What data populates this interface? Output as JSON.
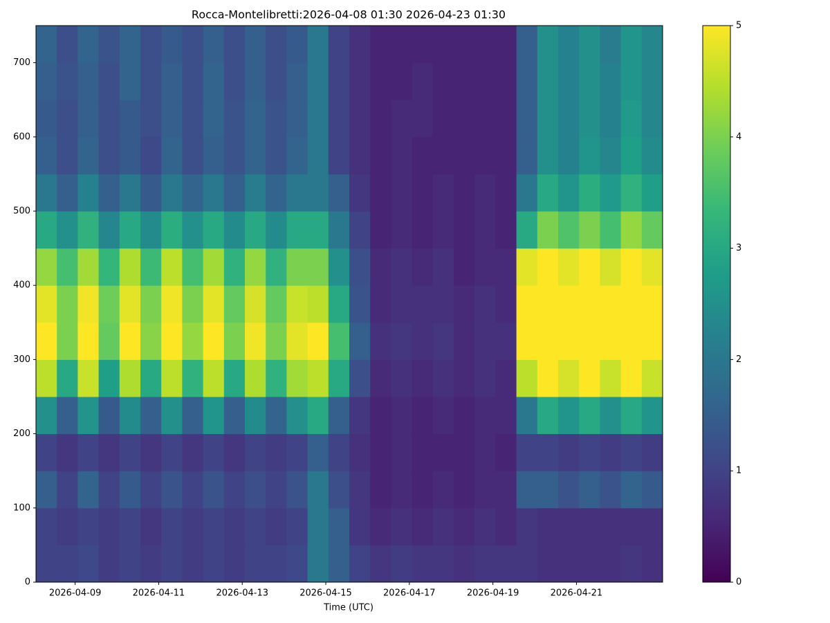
{
  "chart_data": {
    "type": "heatmap",
    "title": "Rocca-Montelibretti:2026-04-08 01:30 2026-04-23 01:30",
    "x_label": "Time (UTC)",
    "colormap": "viridis",
    "x": [
      "2026-04-08 01:30",
      "2026-04-08 13:30",
      "2026-04-09 01:30",
      "2026-04-09 13:30",
      "2026-04-10 01:30",
      "2026-04-10 13:30",
      "2026-04-11 01:30",
      "2026-04-11 13:30",
      "2026-04-12 01:30",
      "2026-04-12 13:30",
      "2026-04-13 01:30",
      "2026-04-13 13:30",
      "2026-04-14 01:30",
      "2026-04-14 13:30",
      "2026-04-15 01:30",
      "2026-04-15 13:30",
      "2026-04-16 01:30",
      "2026-04-16 13:30",
      "2026-04-17 01:30",
      "2026-04-17 13:30",
      "2026-04-18 01:30",
      "2026-04-18 13:30",
      "2026-04-19 01:30",
      "2026-04-19 13:30",
      "2026-04-20 01:30",
      "2026-04-20 13:30",
      "2026-04-21 01:30",
      "2026-04-21 13:30",
      "2026-04-22 01:30",
      "2026-04-22 13:30"
    ],
    "xlim": [
      "2026-04-08 01:30",
      "2026-04-23 01:30"
    ],
    "xticks": [
      "2026-04-09",
      "2026-04-11",
      "2026-04-13",
      "2026-04-15",
      "2026-04-17",
      "2026-04-19",
      "2026-04-21"
    ],
    "y": [
      0,
      50,
      100,
      150,
      200,
      250,
      300,
      350,
      400,
      450,
      500,
      550,
      600,
      650,
      700
    ],
    "ylim": [
      0,
      750
    ],
    "yticks": [
      0,
      100,
      200,
      300,
      400,
      500,
      600,
      700
    ],
    "clim": [
      0,
      5
    ],
    "cticks": [
      0,
      1,
      2,
      3,
      4,
      5
    ],
    "values": [
      [
        1.0,
        1.0,
        1.5,
        1.0,
        2.5,
        4.5,
        5.0,
        4.8,
        4.2,
        3.0,
        2.0,
        1.5,
        1.4,
        1.5,
        1.6
      ],
      [
        1.0,
        0.9,
        1.0,
        0.8,
        1.5,
        3.0,
        4.0,
        4.0,
        3.5,
        2.5,
        1.5,
        1.2,
        1.2,
        1.3,
        1.2
      ],
      [
        1.1,
        1.0,
        1.6,
        1.0,
        2.6,
        4.6,
        5.0,
        4.9,
        4.3,
        3.2,
        2.2,
        1.6,
        1.5,
        1.5,
        1.6
      ],
      [
        0.9,
        0.9,
        1.0,
        0.8,
        1.4,
        2.8,
        3.8,
        3.9,
        3.3,
        2.3,
        1.5,
        1.2,
        1.2,
        1.2,
        1.3
      ],
      [
        1.0,
        1.0,
        1.4,
        1.0,
        2.4,
        4.4,
        5.0,
        4.8,
        4.4,
        3.0,
        2.0,
        1.4,
        1.4,
        1.6,
        1.6
      ],
      [
        0.9,
        0.8,
        1.0,
        0.8,
        1.5,
        3.0,
        4.1,
        4.0,
        3.4,
        2.4,
        1.4,
        1.1,
        1.2,
        1.2,
        1.2
      ],
      [
        1.0,
        1.0,
        1.3,
        1.0,
        2.5,
        4.5,
        5.0,
        4.9,
        4.5,
        3.1,
        2.0,
        1.6,
        1.5,
        1.5,
        1.4
      ],
      [
        0.9,
        0.9,
        1.0,
        0.8,
        1.5,
        3.2,
        4.2,
        4.0,
        3.5,
        2.5,
        1.6,
        1.2,
        1.2,
        1.2,
        1.2
      ],
      [
        1.0,
        1.0,
        1.3,
        1.0,
        2.6,
        4.5,
        5.0,
        4.8,
        4.3,
        3.0,
        2.0,
        1.5,
        1.6,
        1.6,
        1.5
      ],
      [
        0.9,
        0.9,
        1.0,
        0.8,
        1.5,
        3.0,
        4.0,
        3.8,
        3.2,
        2.4,
        1.5,
        1.3,
        1.3,
        1.2,
        1.2
      ],
      [
        1.0,
        1.0,
        1.2,
        1.0,
        2.4,
        4.4,
        4.9,
        4.7,
        4.2,
        3.0,
        2.1,
        1.6,
        1.6,
        1.5,
        1.5
      ],
      [
        1.0,
        0.9,
        1.0,
        0.9,
        1.6,
        3.2,
        4.0,
        3.8,
        3.2,
        2.4,
        1.6,
        1.3,
        1.3,
        1.2,
        1.2
      ],
      [
        1.1,
        1.0,
        1.3,
        1.0,
        2.5,
        4.3,
        4.8,
        4.6,
        4.0,
        3.0,
        2.0,
        1.6,
        1.5,
        1.5,
        1.4
      ],
      [
        2.0,
        2.0,
        2.0,
        1.5,
        3.0,
        4.5,
        5.0,
        4.5,
        4.0,
        3.0,
        2.0,
        2.0,
        2.0,
        2.0,
        2.0
      ],
      [
        1.5,
        1.5,
        1.2,
        1.0,
        1.5,
        3.0,
        3.5,
        3.0,
        2.5,
        2.0,
        1.5,
        1.0,
        1.0,
        1.0,
        1.0
      ],
      [
        1.0,
        0.8,
        0.8,
        0.7,
        0.8,
        1.2,
        1.5,
        1.3,
        1.2,
        1.0,
        0.8,
        0.7,
        0.7,
        0.7,
        0.7
      ],
      [
        0.8,
        0.6,
        0.5,
        0.5,
        0.5,
        0.6,
        0.7,
        0.6,
        0.6,
        0.5,
        0.5,
        0.5,
        0.5,
        0.5,
        0.5
      ],
      [
        0.9,
        0.7,
        0.6,
        0.6,
        0.6,
        0.7,
        0.8,
        0.7,
        0.7,
        0.6,
        0.6,
        0.6,
        0.6,
        0.5,
        0.5
      ],
      [
        0.8,
        0.6,
        0.5,
        0.5,
        0.5,
        0.6,
        0.7,
        0.7,
        0.6,
        0.5,
        0.5,
        0.5,
        0.6,
        0.6,
        0.5
      ],
      [
        0.8,
        0.7,
        0.6,
        0.5,
        0.6,
        0.7,
        0.8,
        0.7,
        0.7,
        0.6,
        0.6,
        0.5,
        0.5,
        0.5,
        0.5
      ],
      [
        0.7,
        0.6,
        0.5,
        0.5,
        0.5,
        0.6,
        0.6,
        0.6,
        0.5,
        0.5,
        0.5,
        0.5,
        0.5,
        0.5,
        0.5
      ],
      [
        0.8,
        0.7,
        0.6,
        0.6,
        0.6,
        0.7,
        0.7,
        0.7,
        0.6,
        0.6,
        0.6,
        0.5,
        0.5,
        0.5,
        0.5
      ],
      [
        0.8,
        0.6,
        0.6,
        0.5,
        0.6,
        0.6,
        0.7,
        0.6,
        0.6,
        0.5,
        0.5,
        0.5,
        0.5,
        0.5,
        0.5
      ],
      [
        0.8,
        0.8,
        1.5,
        1.0,
        2.0,
        4.5,
        5.0,
        5.0,
        4.8,
        3.0,
        2.0,
        1.5,
        1.5,
        1.5,
        1.5
      ],
      [
        0.7,
        0.7,
        1.5,
        1.0,
        3.0,
        5.0,
        5.0,
        5.0,
        5.0,
        4.0,
        3.0,
        2.5,
        2.5,
        2.5,
        2.5
      ],
      [
        0.7,
        0.7,
        1.3,
        0.9,
        2.6,
        4.7,
        5.0,
        5.0,
        4.8,
        3.6,
        2.6,
        2.2,
        2.2,
        2.2,
        2.2
      ],
      [
        0.7,
        0.7,
        1.5,
        1.0,
        3.0,
        5.0,
        5.0,
        5.0,
        5.0,
        4.0,
        3.1,
        2.6,
        2.5,
        2.5,
        2.5
      ],
      [
        0.7,
        0.7,
        1.3,
        0.9,
        2.5,
        4.6,
        5.0,
        5.0,
        4.7,
        3.5,
        2.7,
        2.3,
        2.2,
        2.2,
        2.1
      ],
      [
        0.8,
        0.7,
        1.6,
        1.0,
        3.0,
        5.0,
        5.0,
        5.0,
        5.0,
        4.2,
        3.2,
        2.8,
        2.7,
        2.6,
        2.6
      ],
      [
        0.7,
        0.7,
        1.4,
        0.9,
        2.6,
        4.6,
        5.0,
        5.0,
        4.8,
        3.8,
        2.8,
        2.4,
        2.3,
        2.3,
        2.3
      ]
    ]
  }
}
